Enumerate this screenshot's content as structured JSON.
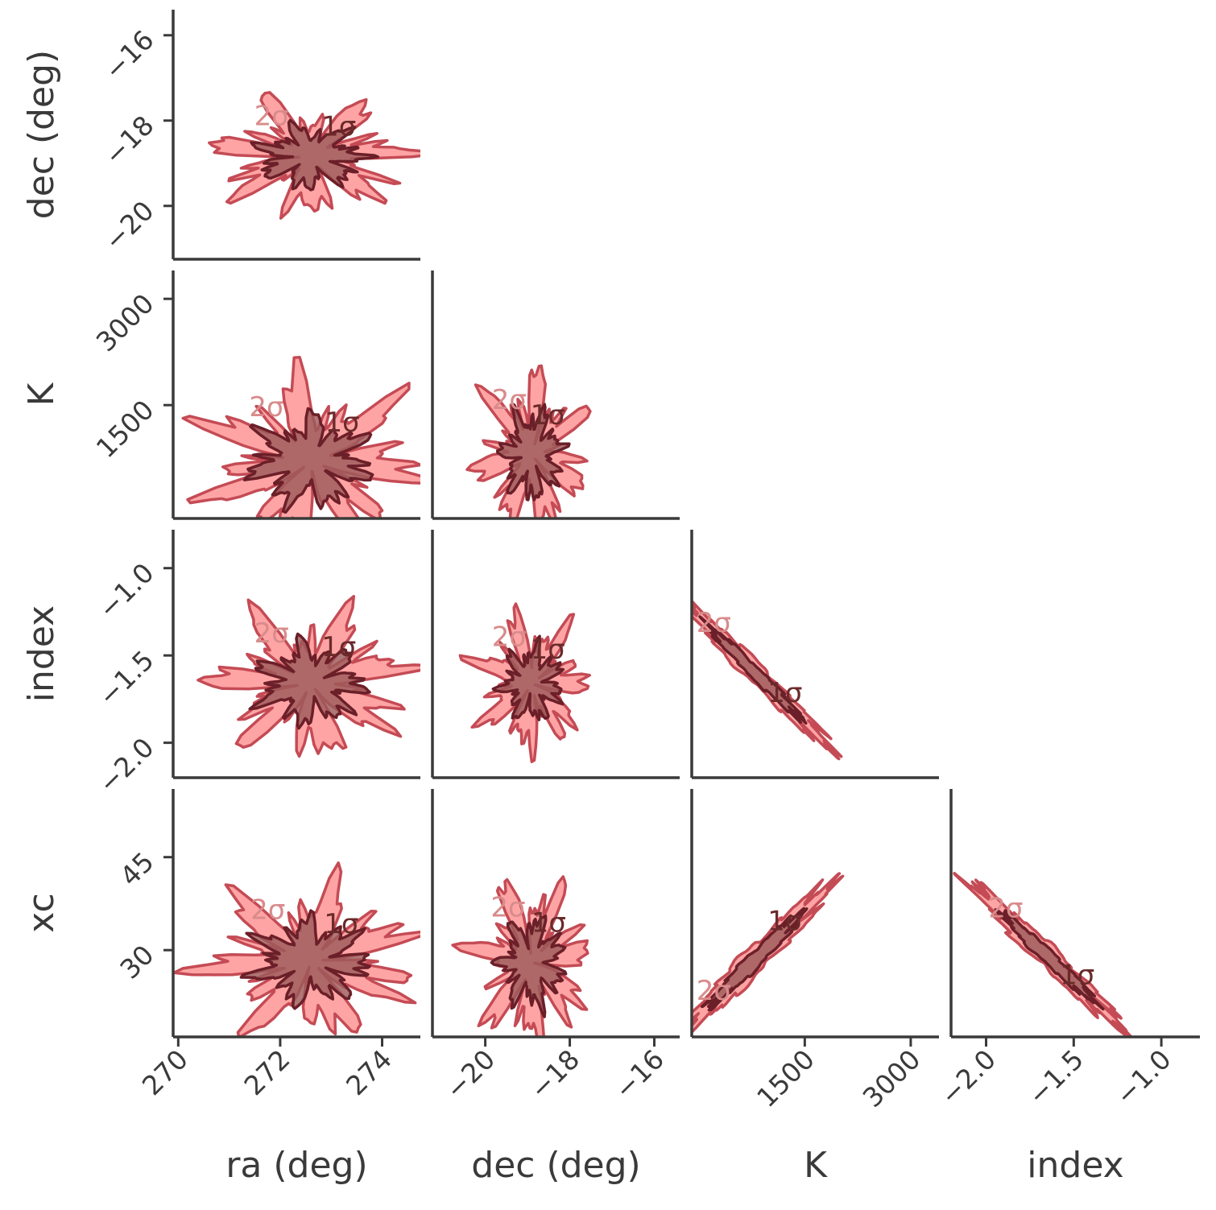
{
  "chart_data": {
    "type": "corner",
    "parameters": [
      "ra (deg)",
      "dec (deg)",
      "K",
      "index",
      "xc"
    ],
    "contour_levels": [
      "1σ",
      "2σ"
    ],
    "colors": {
      "outer_fill": "#ff8a8a",
      "outer_edge": "#c44b55",
      "inner_fill": "#9e5a5a",
      "inner_edge": "#6b1f28",
      "axis": "#3a3a3a"
    },
    "axes": {
      "ra": {
        "label": "ra (deg)",
        "range": [
          269.9,
          274.75
        ],
        "ticks": [
          270,
          272,
          274
        ],
        "tick_labels": [
          "270",
          "272",
          "274"
        ]
      },
      "dec": {
        "label": "dec (deg)",
        "range": [
          -21.25,
          -15.4
        ],
        "ticks": [
          -20,
          -18,
          -16
        ],
        "tick_labels": [
          "−20",
          "−18",
          "−16"
        ]
      },
      "K": {
        "label": "K",
        "range": [
          -100,
          3400
        ],
        "ticks": [
          1500,
          3000
        ],
        "tick_labels": [
          "1500",
          "3000"
        ]
      },
      "index": {
        "label": "index",
        "range": [
          -2.2,
          -0.78
        ],
        "ticks": [
          -2.0,
          -1.5,
          -1.0
        ],
        "tick_labels": [
          "−2.0",
          "−1.5",
          "−1.0"
        ]
      },
      "xc": {
        "label": "xc",
        "range": [
          16,
          56
        ],
        "ticks": [
          30,
          45
        ],
        "tick_labels": [
          "30",
          "45"
        ]
      }
    },
    "panels": [
      {
        "x": "ra",
        "y": "dec",
        "center": [
          272.6,
          -18.85
        ],
        "sigma": [
          0.55,
          0.38
        ],
        "rho": 0.0
      },
      {
        "x": "ra",
        "y": "K",
        "center": [
          272.6,
          700
        ],
        "sigma": [
          0.62,
          330
        ],
        "rho": 0.0
      },
      {
        "x": "dec",
        "y": "K",
        "center": [
          -18.9,
          800
        ],
        "sigma": [
          0.38,
          330
        ],
        "rho": 0.0
      },
      {
        "x": "ra",
        "y": "index",
        "center": [
          272.6,
          -1.66
        ],
        "sigma": [
          0.55,
          0.12
        ],
        "rho": 0.0
      },
      {
        "x": "dec",
        "y": "index",
        "center": [
          -18.9,
          -1.66
        ],
        "sigma": [
          0.38,
          0.11
        ],
        "rho": 0.0
      },
      {
        "x": "K",
        "y": "index",
        "center": [
          800,
          -1.6
        ],
        "sigma": [
          420,
          0.17
        ],
        "rho": -0.985
      },
      {
        "x": "ra",
        "y": "xc",
        "center": [
          272.6,
          28.2
        ],
        "sigma": [
          0.6,
          3.5
        ],
        "rho": 0.0
      },
      {
        "x": "dec",
        "y": "xc",
        "center": [
          -18.9,
          28.0
        ],
        "sigma": [
          0.4,
          3.8
        ],
        "rho": 0.0
      },
      {
        "x": "K",
        "y": "xc",
        "center": [
          800,
          28.5
        ],
        "sigma": [
          420,
          4.8
        ],
        "rho": 0.975
      },
      {
        "x": "index",
        "y": "xc",
        "center": [
          -1.65,
          29.0
        ],
        "sigma": [
          0.17,
          4.6
        ],
        "rho": -0.98
      }
    ]
  }
}
